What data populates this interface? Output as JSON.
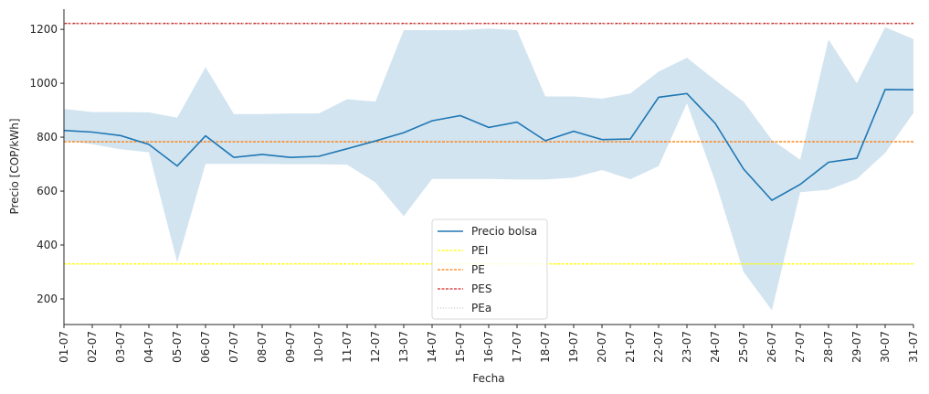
{
  "chart_data": {
    "type": "line",
    "title": "",
    "xlabel": "Fecha",
    "ylabel": "Precio [COP/kWh]",
    "x": [
      "01-07",
      "02-07",
      "03-07",
      "04-07",
      "05-07",
      "06-07",
      "07-07",
      "08-07",
      "09-07",
      "10-07",
      "11-07",
      "12-07",
      "13-07",
      "14-07",
      "15-07",
      "16-07",
      "17-07",
      "18-07",
      "19-07",
      "20-07",
      "21-07",
      "22-07",
      "23-07",
      "24-07",
      "25-07",
      "26-07",
      "27-07",
      "28-07",
      "29-07",
      "30-07",
      "31-07"
    ],
    "ylim": [
      105,
      1275
    ],
    "yticks": [
      200,
      400,
      600,
      800,
      1000,
      1200
    ],
    "grid": false,
    "legend_position": "bottom-center",
    "series": [
      {
        "name": "Precio bolsa",
        "type": "line",
        "color": "#1f77b4",
        "values": [
          825,
          819,
          806,
          773,
          693,
          805,
          725,
          736,
          725,
          729,
          757,
          786,
          817,
          861,
          880,
          836,
          856,
          787,
          822,
          791,
          793,
          948,
          962,
          851,
          682,
          566,
          625,
          707,
          722,
          977,
          976
        ]
      },
      {
        "name": "PEI",
        "type": "hline",
        "color": "#ffff00",
        "value": 330
      },
      {
        "name": "PE",
        "type": "hline",
        "color": "#ff7f0e",
        "value": 783
      },
      {
        "name": "PES",
        "type": "hline",
        "color": "#d62728",
        "value": 1222
      },
      {
        "name": "PEa",
        "type": "hline",
        "color": "#bdbdbd",
        "value": 1222
      }
    ],
    "band": {
      "color": "#1f77b4",
      "opacity": 0.2,
      "upper": [
        905,
        893,
        893,
        892,
        872,
        1060,
        886,
        886,
        888,
        888,
        941,
        932,
        1197,
        1197,
        1197,
        1203,
        1197,
        951,
        951,
        943,
        962,
        1043,
        1095,
        1011,
        932,
        790,
        716,
        1162,
        1000,
        1208,
        1164
      ],
      "lower": [
        787,
        774,
        755,
        744,
        336,
        701,
        701,
        701,
        700,
        700,
        698,
        632,
        507,
        645,
        645,
        645,
        643,
        643,
        650,
        678,
        644,
        693,
        926,
        636,
        300,
        158,
        596,
        605,
        645,
        742,
        890
      ]
    }
  }
}
